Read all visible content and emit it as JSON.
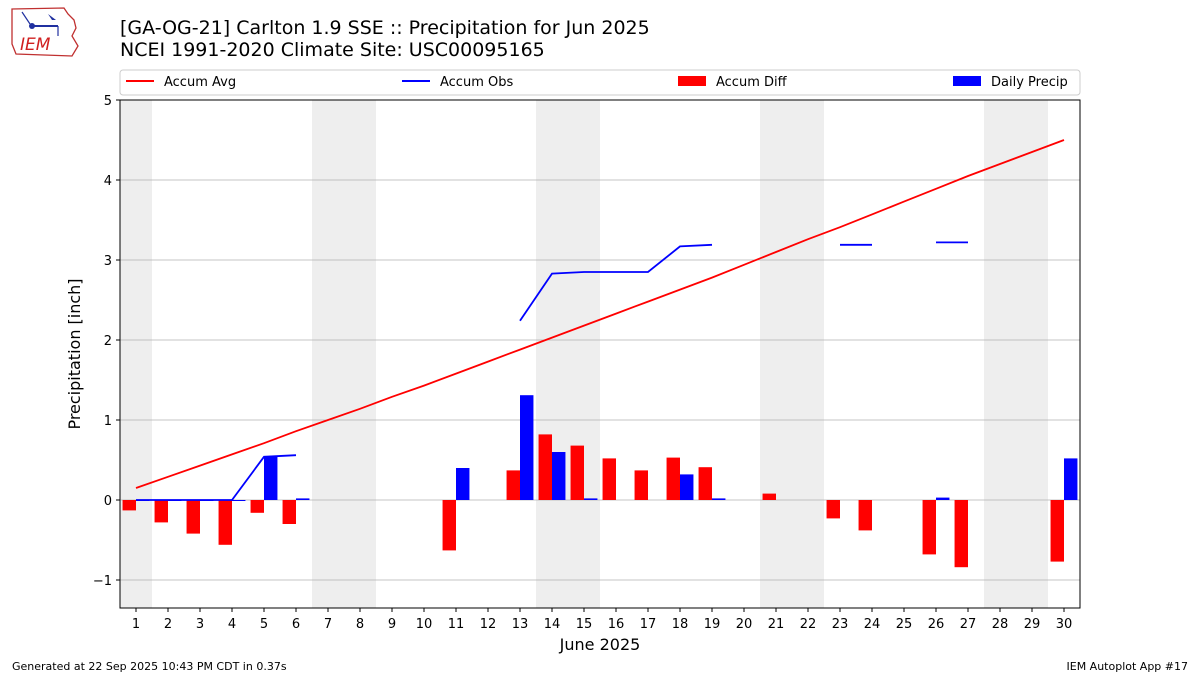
{
  "header": {
    "title_line1": "[GA-OG-21] Carlton 1.9 SSE :: Precipitation for Jun 2025",
    "title_line2": "NCEI 1991-2020 Climate Site: USC00095165",
    "logo_text": "IEM"
  },
  "footer": {
    "generated": "Generated at 22 Sep 2025 10:43 PM CDT in 0.37s",
    "app": "IEM Autoplot App #17"
  },
  "chart_data": {
    "type": "bar",
    "title": "[GA-OG-21] Carlton 1.9 SSE :: Precipitation for Jun 2025",
    "subtitle": "NCEI 1991-2020 Climate Site: USC00095165",
    "xlabel": "June 2025",
    "ylabel": "Precipitation [inch]",
    "ylim": [
      -1.35,
      5
    ],
    "xlim": [
      0.5,
      30.5
    ],
    "yticks": [
      -1,
      0,
      1,
      2,
      3,
      4,
      5
    ],
    "ytick_labels": [
      "−1",
      "0",
      "1",
      "2",
      "3",
      "4",
      "5"
    ],
    "categories": [
      "1",
      "2",
      "3",
      "4",
      "5",
      "6",
      "7",
      "8",
      "9",
      "10",
      "11",
      "12",
      "13",
      "14",
      "15",
      "16",
      "17",
      "18",
      "19",
      "20",
      "21",
      "22",
      "23",
      "24",
      "25",
      "26",
      "27",
      "28",
      "29",
      "30"
    ],
    "grid": "horizontal",
    "legend_placement": "top, spanning",
    "weekend_shading": [
      [
        0.5,
        1.5
      ],
      [
        6.5,
        8.5
      ],
      [
        13.5,
        15.5
      ],
      [
        20.5,
        22.5
      ],
      [
        27.5,
        29.5
      ]
    ],
    "colors": {
      "avg": "#ff0000",
      "obs": "#0000ff",
      "diff": "#ff0000",
      "daily": "#0000ff",
      "shade": "#eeeeee"
    },
    "series": [
      {
        "name": "Accum Avg",
        "kind": "line",
        "values": [
          0.15,
          0.29,
          0.43,
          0.57,
          0.71,
          0.86,
          1.0,
          1.14,
          1.29,
          1.43,
          1.58,
          1.73,
          1.88,
          2.03,
          2.18,
          2.33,
          2.48,
          2.63,
          2.78,
          2.94,
          3.1,
          3.26,
          3.41,
          3.57,
          3.73,
          3.89,
          4.05,
          4.2,
          4.35,
          4.5
        ]
      },
      {
        "name": "Accum Obs",
        "kind": "line",
        "values": [
          0.0,
          0.0,
          0.0,
          0.0,
          0.54,
          0.56,
          null,
          null,
          null,
          null,
          null,
          null,
          2.24,
          2.83,
          2.85,
          2.85,
          2.85,
          3.17,
          3.19,
          null,
          null,
          null,
          3.19,
          3.19,
          null,
          3.22,
          3.22,
          null,
          null,
          null
        ]
      },
      {
        "name": "Accum Diff",
        "kind": "bar",
        "values": [
          -0.13,
          -0.28,
          -0.42,
          -0.56,
          -0.16,
          -0.3,
          null,
          null,
          null,
          null,
          -0.63,
          null,
          0.37,
          0.82,
          0.68,
          0.52,
          0.37,
          0.53,
          0.41,
          null,
          0.08,
          null,
          -0.23,
          -0.38,
          null,
          -0.68,
          -0.84,
          null,
          null,
          -0.77
        ]
      },
      {
        "name": "Daily Precip",
        "kind": "bar",
        "values": [
          0,
          0,
          0,
          0,
          0.54,
          0.02,
          null,
          null,
          null,
          null,
          0.4,
          null,
          1.31,
          0.6,
          0.02,
          null,
          null,
          0.32,
          0.02,
          null,
          null,
          null,
          null,
          null,
          null,
          0.03,
          null,
          null,
          null,
          0.52
        ]
      }
    ]
  }
}
